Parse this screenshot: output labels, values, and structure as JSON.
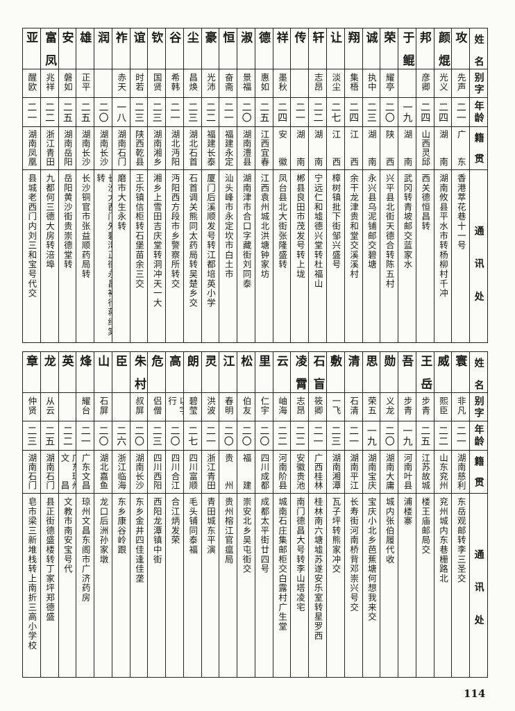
{
  "headers": {
    "name": "姓名",
    "alias": "别字",
    "age": "年龄",
    "origin": "籍贯",
    "address": "通讯处"
  },
  "top_table": [
    {
      "name": "陈飞攻",
      "alias": "先声",
      "age": "二一",
      "origin": "广东",
      "address": "香港萃花巷十一号"
    },
    {
      "name": "颜焜",
      "alias": "光义",
      "age": "二四",
      "origin": "湖南",
      "address": "湖南攸县平水市转杨柳村千冲"
    },
    {
      "name": "夏安邦",
      "alias": "彦卿",
      "age": "二四",
      "origin": "山西灵邱",
      "address": "西关德恒昌转"
    },
    {
      "name": "于鲲",
      "alias": "",
      "age": "一九",
      "origin": "湖南",
      "address": "武冈转青坡邮交蓝家水"
    },
    {
      "name": "杨生荣",
      "alias": "耀亭",
      "age": "二〇",
      "origin": "陕西",
      "address": "兴平县北街天德合转陈五村"
    },
    {
      "name": "曹致诚",
      "alias": "执中",
      "age": "二三",
      "origin": "湖南",
      "address": "永兴县乌泥铺邮交碧塘"
    },
    {
      "name": "涂凤翔",
      "alias": "集梧",
      "age": "二四",
      "origin": "江西",
      "address": "余干龙津贵和堂交溪溪村"
    },
    {
      "name": "邬家让",
      "alias": "淡尘",
      "age": "二七",
      "origin": "江西",
      "address": "樟树镇批下街邹兴盛号"
    },
    {
      "name": "张锦轩",
      "alias": "志昂",
      "age": "二二",
      "origin": "湖南",
      "address": "宁远仁和墟德兴堂转杜福山"
    },
    {
      "name": "黄育传",
      "alias": "",
      "age": "二一",
      "origin": "湖南",
      "address": "郴县良田市茂发号转上垅"
    },
    {
      "name": "张国祥",
      "alias": "墨秋",
      "age": "二四",
      "origin": "安徽",
      "address": "凤台县北大街张隆盛转"
    },
    {
      "name": "钟振德",
      "alias": "惠如",
      "age": "二五",
      "origin": "江西宜春",
      "address": "江西袁州城北洪塘钟家坊"
    },
    {
      "name": "刘子淑",
      "alias": "景福",
      "age": "二〇",
      "origin": "湖南澧县",
      "address": "湖南津市合口字藏街刘同泰"
    },
    {
      "name": "杨仰恒",
      "alias": "奋斋",
      "age": "二一",
      "origin": "福建永定",
      "address": "汕头峰市永定坎市白土市"
    },
    {
      "name": "连英豪",
      "alias": "光沛",
      "age": "二二",
      "origin": "福建长泰",
      "address": "厦门后溪顺发号转江都培英小学"
    },
    {
      "name": "马张尘",
      "alias": "昌焕",
      "age": "二三",
      "origin": "湖北石首",
      "address": "石首调关熊同太药局转吴楚乡交"
    },
    {
      "name": "杨宝谷",
      "alias": "希韩",
      "age": "二一",
      "origin": "湖北沔阳",
      "address": "沔阳西方段市乡警察所转交"
    },
    {
      "name": "谭子钦",
      "alias": "国贤",
      "age": "二三",
      "origin": "湖南湘乡",
      "address": "湘乡上雪田吉庆堂转洞冲天一大"
    },
    {
      "name": "李正谊",
      "alias": "时若",
      "age": "二三",
      "origin": "陕西乾县",
      "address": "王乐镇信柜转石堡苗余三交"
    },
    {
      "name": "王日祚",
      "alias": "赤天",
      "age": "一八",
      "origin": "湖南石门",
      "address": "磨市大生永转"
    },
    {
      "name": "曹德润",
      "alias": "",
      "age": "二〇",
      "origin": "湖南长沙",
      "address": "长沙大西门外碧湾正街永昌裕行蒋绍棠转"
    },
    {
      "name": "黄华雄",
      "alias": "正平",
      "age": "二五",
      "origin": "湖南长沙",
      "address": "长沙铜官市张益顺药局转"
    },
    {
      "name": "费固安",
      "alias": "磐如",
      "age": "二五",
      "origin": "湖南岳阳",
      "address": "岳阳黄沙街贵崇德堂转"
    },
    {
      "name": "富凤",
      "alias": "兆祥",
      "age": "二二",
      "origin": "浙江青田",
      "address": "九都何三德大房转涪埠"
    },
    {
      "name": "罗宾亚",
      "alias": "醒欧",
      "age": "二一",
      "origin": "湖南凤凰",
      "address": "县城老西门内刘三和宝号代交"
    }
  ],
  "bottom_table": [
    {
      "name": "李辉寰",
      "alias": "非凡",
      "age": "二一",
      "origin": "湖南慈利",
      "address": "东岳观邮转李三圣交"
    },
    {
      "name": "汤永威",
      "alias": "熙臣",
      "age": "二二",
      "origin": "山东兖州",
      "address": "兖州城内东巷栅路北"
    },
    {
      "name": "王岳",
      "alias": "步青",
      "age": "二五",
      "origin": "江苏故城",
      "address": "楼王庙邮局交"
    },
    {
      "name": "马幻吾",
      "alias": "步青",
      "age": "一九",
      "origin": "河南叶县",
      "address": "浦楼寨"
    },
    {
      "name": "张国勋",
      "alias": "义龙",
      "age": "二〇",
      "origin": "湖南大庸",
      "address": "城内张伯履代收"
    },
    {
      "name": "曾文思",
      "alias": "荣五",
      "age": "一九",
      "origin": "湖南宝庆",
      "address": "宝庆小北乡芭蕉塘何想我来交"
    },
    {
      "name": "曹世清",
      "alias": "石清",
      "age": "二一",
      "origin": "湖南平江",
      "address": "长寿街河南桥背邓崇兴号交"
    },
    {
      "name": "萧荣敷",
      "alias": "一飞",
      "age": "二三",
      "origin": "湖南湘潭",
      "address": "瓦子坪转熊家冲交"
    },
    {
      "name": "石盲",
      "alias": "筱卿",
      "age": "二一",
      "origin": "广西桂林",
      "address": "桂林南六塘墟苏遂安乐室转星罗西"
    },
    {
      "name": "凌霄",
      "alias": "志昂",
      "age": "二二",
      "origin": "安徽贵池",
      "address": "南门德昌大号转李山塔凌宅"
    },
    {
      "name": "刘岚云",
      "alias": "岫海",
      "age": "二二",
      "origin": "河南阶县",
      "address": "城南石庄集邮柜交白露村广生堂"
    },
    {
      "name": "林万里",
      "alias": "仁宇",
      "age": "二〇",
      "origin": "四川成都",
      "address": "成都太平街廿四号"
    },
    {
      "name": "林远松",
      "alias": "伯友",
      "age": "二〇",
      "origin": "福建",
      "address": "崇安北乡吴屯街交"
    },
    {
      "name": "徐锦江",
      "alias": "春明",
      "age": "二〇",
      "origin": "贵州",
      "address": "贵州榕江官瘟局"
    },
    {
      "name": "詹毓灵",
      "alias": "洪波",
      "age": "二一",
      "origin": "浙江青田",
      "address": "青田城东平演"
    },
    {
      "name": "胡天朗",
      "alias": "碧莹",
      "age": "二七",
      "origin": "四川富顺",
      "address": "毛头铺同泰福"
    },
    {
      "name": "曾汝高",
      "alias": "以字行",
      "age": "二〇",
      "origin": "四川合江",
      "address": "合江炳发荣"
    },
    {
      "name": "张兆危",
      "alias": "侣僧",
      "age": "二三",
      "origin": "四川西阳",
      "address": "西阳龙潭镇中街"
    },
    {
      "name": "朱村",
      "alias": "叔屏",
      "age": "二〇",
      "origin": "湖南长沙",
      "address": "东乡金井四佳逢佳垄"
    },
    {
      "name": "王辅臣",
      "alias": "",
      "age": "二六",
      "origin": "浙江临海",
      "address": "东乡康谷岭跟"
    },
    {
      "name": "朱移山",
      "alias": "石屏",
      "age": "二〇",
      "origin": "湖北嘉鱼",
      "address": "龙口后洲孙家墩"
    },
    {
      "name": "郑庭烽",
      "alias": "耀台",
      "age": "二一",
      "origin": "广东文昌",
      "address": "琼州文昌东阁市广济药房"
    },
    {
      "name": "梁亘英",
      "alias": "",
      "age": "二二",
      "origin": "广东琼州文昌",
      "address": "文教市南安宝号代"
    },
    {
      "name": "郑定龙",
      "alias": "从云",
      "age": "二五",
      "origin": "湖南石门",
      "address": "县正街德盛楼转丁家坪郑德盛"
    },
    {
      "name": "贾条章",
      "alias": "仲贤",
      "age": "二三",
      "origin": "湖南石门",
      "address": "皂市梁三新堆栈转上南折三高小学校"
    }
  ],
  "page_number": "114"
}
